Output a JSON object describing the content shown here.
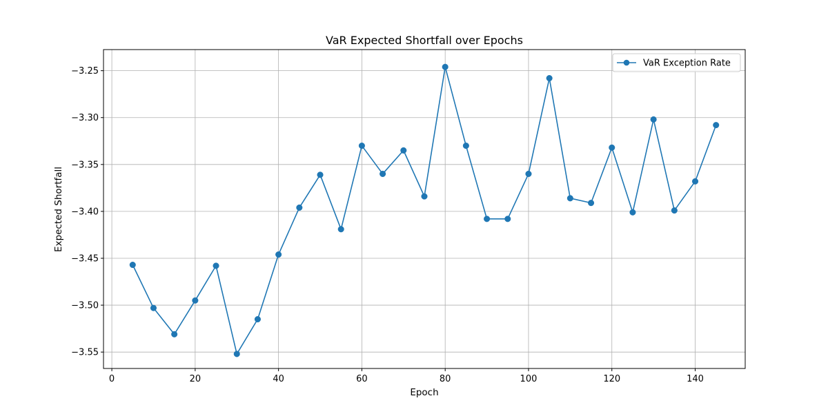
{
  "chart_data": {
    "type": "line",
    "title": "VaR Expected Shortfall over Epochs",
    "xlabel": "Epoch",
    "ylabel": "Expected Shortfall",
    "xlim": [
      -2,
      152
    ],
    "ylim": [
      -3.5675,
      -3.2275
    ],
    "xticks": [
      0,
      20,
      40,
      60,
      80,
      100,
      120,
      140
    ],
    "xtick_labels": [
      "0",
      "20",
      "40",
      "60",
      "80",
      "100",
      "120",
      "140"
    ],
    "yticks": [
      -3.55,
      -3.5,
      -3.45,
      -3.4,
      -3.35,
      -3.3,
      -3.25
    ],
    "ytick_labels": [
      "−3.55",
      "−3.50",
      "−3.45",
      "−3.40",
      "−3.35",
      "−3.30",
      "−3.25"
    ],
    "grid": true,
    "legend_position": "top-right",
    "series": [
      {
        "name": "VaR Exception Rate",
        "color": "#1f77b4",
        "marker": "circle",
        "x": [
          5,
          10,
          15,
          20,
          25,
          30,
          35,
          40,
          45,
          50,
          55,
          60,
          65,
          70,
          75,
          80,
          85,
          90,
          95,
          100,
          105,
          110,
          115,
          120,
          125,
          130,
          135,
          140,
          145
        ],
        "y": [
          -3.457,
          -3.503,
          -3.531,
          -3.495,
          -3.458,
          -3.552,
          -3.515,
          -3.446,
          -3.396,
          -3.361,
          -3.419,
          -3.33,
          -3.36,
          -3.335,
          -3.384,
          -3.246,
          -3.33,
          -3.408,
          -3.408,
          -3.36,
          -3.258,
          -3.386,
          -3.391,
          -3.332,
          -3.401,
          -3.302,
          -3.399,
          -3.368,
          -3.308
        ]
      }
    ]
  }
}
